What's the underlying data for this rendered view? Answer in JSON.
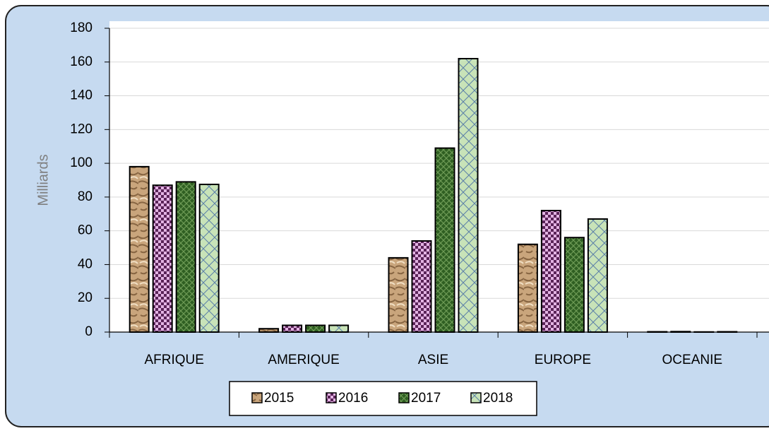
{
  "chart_data": {
    "type": "bar",
    "y_label": "Milliards",
    "categories": [
      "AFRIQUE",
      "AMERIQUE",
      "ASIE",
      "EUROPE",
      "OCEANIE"
    ],
    "series": [
      {
        "name": "2015",
        "color": "#c9a57c",
        "values": [
          98,
          2,
          44,
          52,
          0.2
        ]
      },
      {
        "name": "2016",
        "color": "#e3b3e3",
        "values": [
          87,
          4,
          54,
          72,
          0.3
        ]
      },
      {
        "name": "2017",
        "color": "#2f5f22",
        "values": [
          89,
          4,
          109,
          56,
          0.1
        ]
      },
      {
        "name": "2018",
        "color": "#c8e3b8",
        "values": [
          87.5,
          4,
          162,
          67,
          0.2
        ]
      }
    ],
    "ylim": [
      0,
      180
    ],
    "yticks": [
      0,
      20,
      40,
      60,
      80,
      100,
      120,
      140,
      160,
      180
    ],
    "grid": true,
    "legend": "bottom"
  }
}
